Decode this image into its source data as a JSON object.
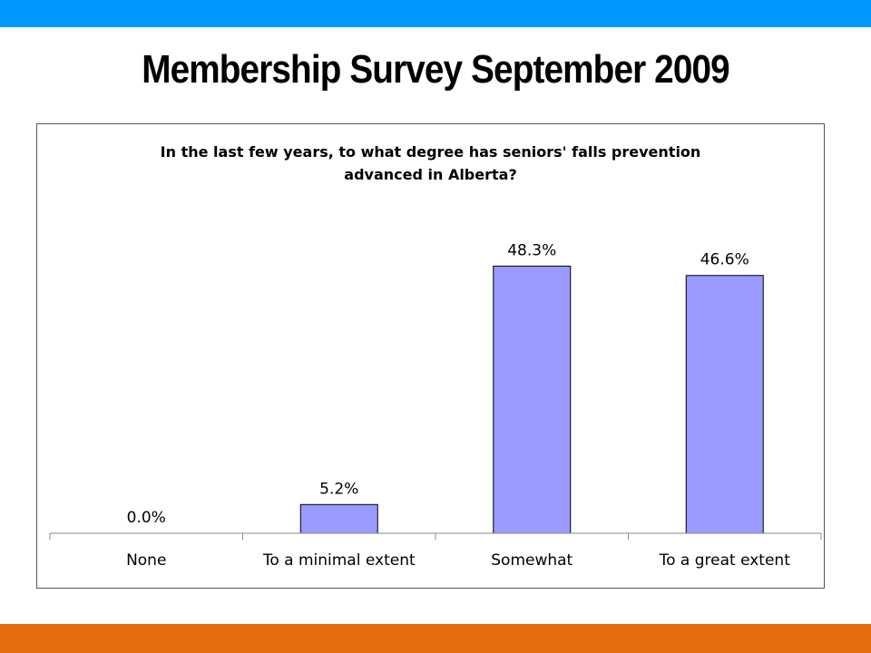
{
  "slide": {
    "title": "Membership Survey September 2009",
    "top_band_color": "#0099ff",
    "bottom_band_color": "#e46c0a"
  },
  "chart_data": {
    "type": "bar",
    "title_lines": [
      "In the last few years, to what degree has seniors' falls prevention",
      "advanced in Alberta?"
    ],
    "categories": [
      "None",
      "To a minimal extent",
      "Somewhat",
      "To a great extent"
    ],
    "values": [
      0.0,
      5.2,
      48.3,
      46.6
    ],
    "value_labels": [
      "0.0%",
      "5.2%",
      "48.3%",
      "46.6%"
    ],
    "unit": "%",
    "bar_color": "#9999ff",
    "xlabel": "",
    "ylabel": "",
    "ylim": [
      0,
      60
    ],
    "grid": false,
    "legend": "none"
  }
}
